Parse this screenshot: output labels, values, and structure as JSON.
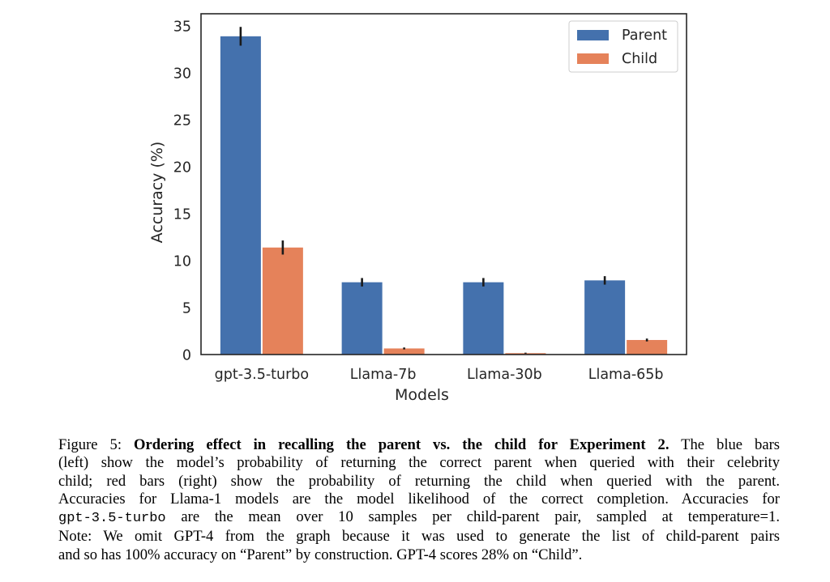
{
  "chart_data": {
    "type": "bar",
    "title": "",
    "xlabel": "Models",
    "ylabel": "Accuracy (%)",
    "ylim": [
      0,
      36.3
    ],
    "yticks": [
      0,
      5,
      10,
      15,
      20,
      25,
      30,
      35
    ],
    "categories": [
      "gpt-3.5-turbo",
      "Llama-7b",
      "Llama-30b",
      "Llama-65b"
    ],
    "series": [
      {
        "name": "Parent",
        "color": "#4471ad",
        "values": [
          33.9,
          7.7,
          7.7,
          7.9
        ],
        "errors": [
          1.0,
          0.45,
          0.45,
          0.45
        ]
      },
      {
        "name": "Child",
        "color": "#e5825a",
        "values": [
          11.4,
          0.65,
          0.15,
          1.55
        ],
        "errors": [
          0.75,
          0.1,
          0.05,
          0.15
        ]
      }
    ],
    "legend": {
      "position": "top-right",
      "entries": [
        "Parent",
        "Child"
      ]
    },
    "grid": false,
    "error_bars": true
  },
  "caption": {
    "figure_label": "Figure 5:",
    "bold_title": "Ordering effect in recalling the parent vs. the child for Experiment 2.",
    "line1_rest": " The blue bars",
    "line2": "(left) show the model’s probability of returning the correct parent when queried with their celebrity",
    "line3": "child; red bars (right) show the probability of returning the child when queried with the parent.",
    "line4": "Accuracies for Llama-1 models are the model likelihood of the correct completion. Accuracies for",
    "line5_code": "gpt-3.5-turbo",
    "line5_rest": " are the mean over 10 samples per child-parent pair, sampled at temperature=1.",
    "line6": "Note: We omit GPT-4 from the graph because it was used to generate the list of child-parent pairs",
    "line7": "and so has 100% accuracy on “Parent” by construction. GPT-4 scores 28% on “Child”."
  }
}
